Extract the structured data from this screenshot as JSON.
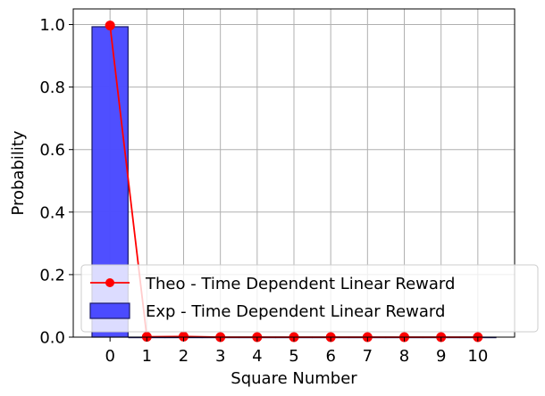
{
  "chart_data": {
    "type": "bar",
    "xlabel": "Square Number",
    "ylabel": "Probability",
    "x": [
      0,
      1,
      2,
      3,
      4,
      5,
      6,
      7,
      8,
      9,
      10
    ],
    "xlim": [
      -1,
      11
    ],
    "ylim": [
      0,
      1.05
    ],
    "yticks": [
      0.0,
      0.2,
      0.4,
      0.6,
      0.8,
      1.0
    ],
    "ytick_labels": [
      "0.0",
      "0.2",
      "0.4",
      "0.6",
      "0.8",
      "1.0"
    ],
    "xtick_labels": [
      "0",
      "1",
      "2",
      "3",
      "4",
      "5",
      "6",
      "7",
      "8",
      "9",
      "10"
    ],
    "grid": true,
    "legend_position": "lower right",
    "series": [
      {
        "name": "Theo - Time Dependent Linear Reward",
        "type": "line",
        "color": "#ff0000",
        "marker": "circle",
        "values": [
          0.997,
          0.001,
          0.002,
          0.0,
          0.0,
          0.0,
          0.0,
          0.0,
          0.0,
          0.0,
          0.0
        ]
      },
      {
        "name": "Exp - Time Dependent Linear Reward",
        "type": "bar",
        "color": "#4b4bff",
        "edge_color": "#1a1a66",
        "values": [
          0.993,
          0.0,
          0.0,
          0.0,
          0.0,
          0.0,
          0.0,
          0.0,
          0.0,
          0.0,
          0.0
        ]
      }
    ]
  }
}
